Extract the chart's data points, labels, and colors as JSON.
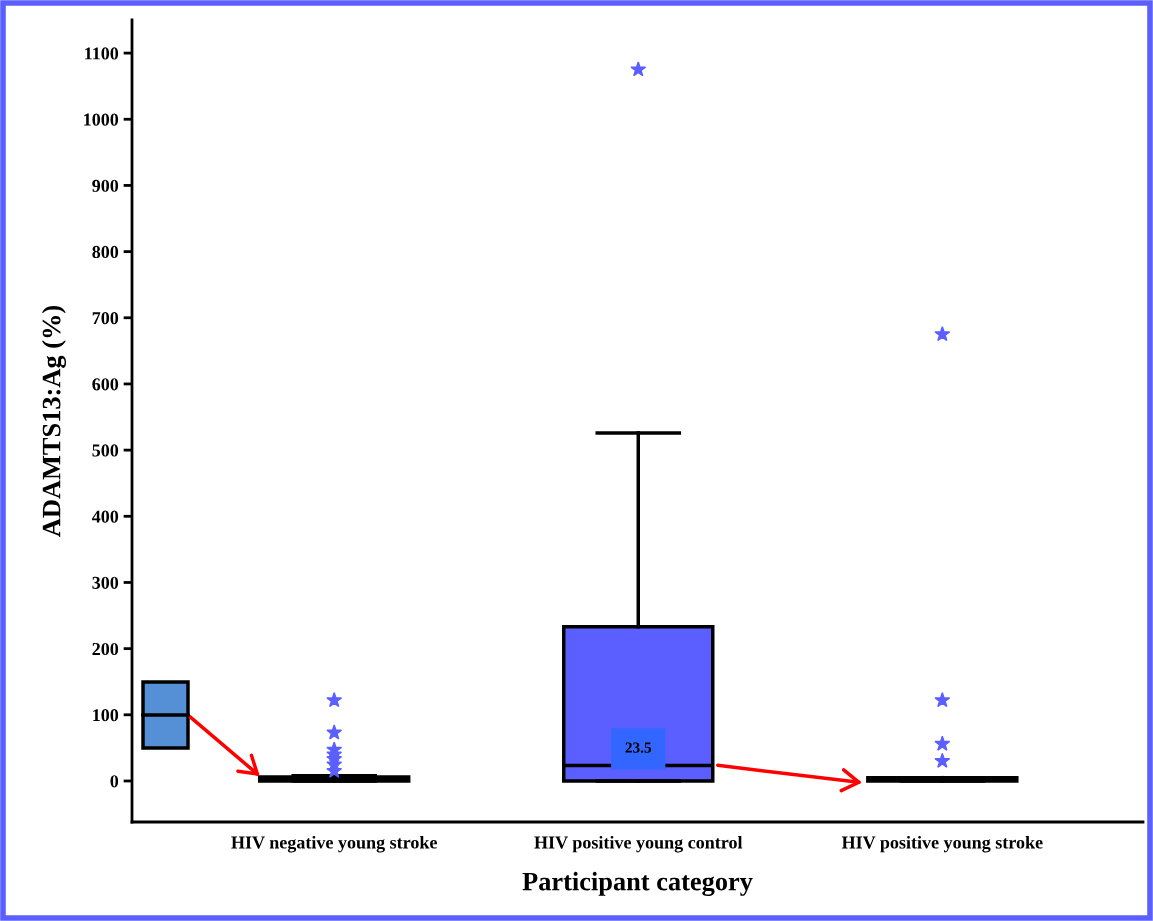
{
  "chart_data": {
    "type": "box",
    "ylabel": "ADAMTS13:Ag (%)",
    "xlabel": "Participant category",
    "categories": [
      "HIV negative young stroke",
      "HIV positive young control",
      "HIV positive young stroke"
    ],
    "color": "#5b5fff",
    "marker": "star",
    "grid": false,
    "legend": false,
    "boxes": [
      {
        "low": 0,
        "q1": 0,
        "median": 2,
        "q3": 6,
        "high": 8,
        "outliers": [
          122,
          73,
          47,
          40,
          33,
          25,
          15
        ]
      },
      {
        "low": 0,
        "q1": 0,
        "median": 23.5,
        "q3": 233,
        "high": 526,
        "outliers": [
          1075
        ]
      },
      {
        "low": 0,
        "q1": 0,
        "median": 2,
        "q3": 5,
        "high": 5,
        "outliers": [
          675,
          122,
          56,
          30
        ]
      }
    ],
    "ylim": [
      -62,
      1150
    ],
    "yticks": [
      0,
      100,
      200,
      300,
      400,
      500,
      600,
      700,
      800,
      900,
      1000,
      1100
    ],
    "annotations": [
      {
        "text": "23.5",
        "x": "HIV positive young control",
        "y": 23.5
      }
    ]
  }
}
